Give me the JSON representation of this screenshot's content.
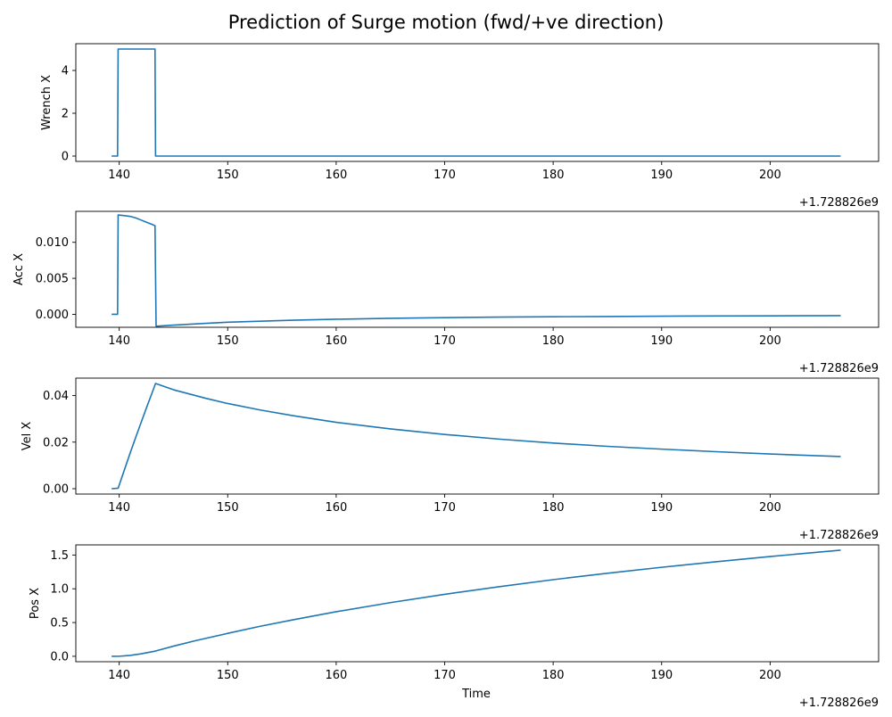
{
  "figure": {
    "suptitle": "Prediction of Surge motion (fwd/+ve direction)",
    "line_color": "#1f77b4"
  },
  "chart_data": [
    {
      "type": "line",
      "ylabel": "Wrench X",
      "xlabel": "",
      "offset_label": "+1.728826e9",
      "xlim": [
        136.0,
        210.0
      ],
      "ylim": [
        -0.25,
        5.25
      ],
      "xticks": [
        "140",
        "150",
        "160",
        "170",
        "180",
        "190",
        "200"
      ],
      "xtick_values": [
        140,
        150,
        160,
        170,
        180,
        190,
        200
      ],
      "yticks": [
        "0",
        "2",
        "4"
      ],
      "ytick_values": [
        0,
        2,
        4
      ],
      "series": [
        {
          "x": [
            139.3,
            139.85,
            139.9,
            143.3,
            143.35,
            206.5
          ],
          "y": [
            0,
            0,
            5,
            5,
            0,
            0
          ]
        }
      ]
    },
    {
      "type": "line",
      "ylabel": "Acc X",
      "xlabel": "",
      "offset_label": "+1.728826e9",
      "xlim": [
        136.0,
        210.0
      ],
      "ylim": [
        -0.0018,
        0.0143
      ],
      "xticks": [
        "140",
        "150",
        "160",
        "170",
        "180",
        "190",
        "200"
      ],
      "xtick_values": [
        140,
        150,
        160,
        170,
        180,
        190,
        200
      ],
      "yticks": [
        "0.000",
        "0.005",
        "0.010"
      ],
      "ytick_values": [
        0.0,
        0.005,
        0.01
      ],
      "series": [
        {
          "x": [
            139.3,
            139.85,
            139.9,
            140.5,
            141.0,
            141.5,
            142.0,
            142.5,
            143.0,
            143.3,
            143.4,
            145,
            148,
            150,
            153,
            156,
            160,
            165,
            170,
            175,
            180,
            185,
            190,
            195,
            200,
            206.5
          ],
          "y": [
            0,
            0,
            0.0138,
            0.0137,
            0.0136,
            0.0134,
            0.0131,
            0.0128,
            0.0125,
            0.0123,
            -0.00165,
            -0.0015,
            -0.00125,
            -0.0011,
            -0.00095,
            -0.00082,
            -0.00068,
            -0.00055,
            -0.00046,
            -0.00039,
            -0.00034,
            -0.0003,
            -0.00026,
            -0.00023,
            -0.00021,
            -0.00018
          ]
        }
      ]
    },
    {
      "type": "line",
      "ylabel": "Vel X",
      "xlabel": "",
      "offset_label": "+1.728826e9",
      "xlim": [
        136.0,
        210.0
      ],
      "ylim": [
        -0.0023,
        0.0475
      ],
      "xticks": [
        "140",
        "150",
        "160",
        "170",
        "180",
        "190",
        "200"
      ],
      "xtick_values": [
        140,
        150,
        160,
        170,
        180,
        190,
        200
      ],
      "yticks": [
        "0.00",
        "0.02",
        "0.04"
      ],
      "ytick_values": [
        0.0,
        0.02,
        0.04
      ],
      "series": [
        {
          "x": [
            139.3,
            139.9,
            140.5,
            141.0,
            141.5,
            142.0,
            142.5,
            143.0,
            143.35,
            145,
            148,
            150,
            153,
            156,
            160,
            165,
            170,
            175,
            180,
            185,
            190,
            195,
            200,
            206.5
          ],
          "y": [
            0,
            0.0002,
            0.0084,
            0.0152,
            0.0218,
            0.0282,
            0.0346,
            0.0408,
            0.0452,
            0.0425,
            0.0388,
            0.0366,
            0.0338,
            0.0314,
            0.0285,
            0.0257,
            0.0233,
            0.0213,
            0.0196,
            0.0182,
            0.017,
            0.0159,
            0.0149,
            0.0138
          ]
        }
      ]
    },
    {
      "type": "line",
      "ylabel": "Pos X",
      "xlabel": "Time",
      "offset_label": "+1.728826e9",
      "xlim": [
        136.0,
        210.0
      ],
      "ylim": [
        -0.08,
        1.65
      ],
      "xticks": [
        "140",
        "150",
        "160",
        "170",
        "180",
        "190",
        "200"
      ],
      "xtick_values": [
        140,
        150,
        160,
        170,
        180,
        190,
        200
      ],
      "yticks": [
        "0.0",
        "0.5",
        "1.0",
        "1.5"
      ],
      "ytick_values": [
        0.0,
        0.5,
        1.0,
        1.5
      ],
      "series": [
        {
          "x": [
            139.3,
            140,
            141,
            142,
            143.35,
            145,
            147,
            150,
            153,
            156,
            160,
            165,
            170,
            175,
            180,
            185,
            190,
            195,
            200,
            206.5
          ],
          "y": [
            0,
            0.001,
            0.013,
            0.036,
            0.078,
            0.15,
            0.23,
            0.34,
            0.445,
            0.54,
            0.66,
            0.795,
            0.918,
            1.03,
            1.135,
            1.23,
            1.318,
            1.4,
            1.478,
            1.572
          ]
        }
      ]
    }
  ]
}
